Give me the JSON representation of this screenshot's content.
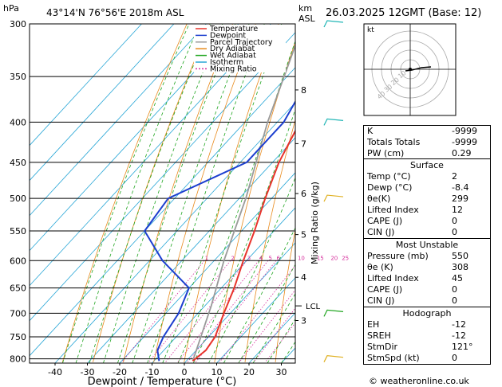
{
  "header": {
    "unit_left": "hPa",
    "location": "43°14'N  76°56'E  2018m  ASL",
    "unit_km": "km",
    "unit_asl": "ASL",
    "datetime": "26.03.2025  12GMT  (Base: 12)"
  },
  "chart_data": {
    "type": "skew-t",
    "xlabel": "Dewpoint / Temperature (°C)",
    "ylabel_right": "Mixing Ratio (g/kg)",
    "x_ticks": [
      -40,
      -30,
      -20,
      -10,
      0,
      10,
      20,
      30
    ],
    "pressure_levels": [
      300,
      350,
      400,
      450,
      500,
      550,
      600,
      650,
      700,
      750,
      800
    ],
    "km_ticks": [
      {
        "label": "8",
        "p": 364
      },
      {
        "label": "7",
        "p": 426
      },
      {
        "label": "6",
        "p": 493
      },
      {
        "label": "5",
        "p": 556
      },
      {
        "label": "4",
        "p": 630
      },
      {
        "label": "3",
        "p": 715
      }
    ],
    "lcl": {
      "label": "LCL",
      "p": 685
    },
    "mixing_ratio_labels": [
      "1",
      "2",
      "3",
      "4",
      "5",
      "6",
      "10",
      "15",
      "20",
      "25"
    ],
    "mixing_ratio_values": [
      1,
      2,
      3,
      4,
      5,
      6,
      10,
      15,
      20,
      25
    ],
    "mixing_ratio_label_p": 595,
    "temperature": [
      {
        "p": 805,
        "t": 2
      },
      {
        "p": 780,
        "t": 3
      },
      {
        "p": 750,
        "t": 2
      },
      {
        "p": 700,
        "t": -2
      },
      {
        "p": 650,
        "t": -6
      },
      {
        "p": 600,
        "t": -11
      },
      {
        "p": 550,
        "t": -16
      },
      {
        "p": 500,
        "t": -22
      },
      {
        "p": 450,
        "t": -28
      },
      {
        "p": 400,
        "t": -33
      },
      {
        "p": 350,
        "t": -41
      },
      {
        "p": 300,
        "t": -49
      }
    ],
    "dewpoint": [
      {
        "p": 805,
        "t": -8.4
      },
      {
        "p": 780,
        "t": -12
      },
      {
        "p": 750,
        "t": -14
      },
      {
        "p": 700,
        "t": -16
      },
      {
        "p": 650,
        "t": -20
      },
      {
        "p": 600,
        "t": -36
      },
      {
        "p": 550,
        "t": -50
      },
      {
        "p": 500,
        "t": -52
      },
      {
        "p": 450,
        "t": -38
      },
      {
        "p": 400,
        "t": -38
      },
      {
        "p": 350,
        "t": -43
      },
      {
        "p": 300,
        "t": -52
      }
    ],
    "parcel": [
      {
        "p": 805,
        "t": 2
      },
      {
        "p": 685,
        "t": -8
      },
      {
        "p": 600,
        "t": -17
      },
      {
        "p": 500,
        "t": -28
      },
      {
        "p": 400,
        "t": -43
      },
      {
        "p": 300,
        "t": -60
      }
    ],
    "legend": [
      {
        "label": "Temperature",
        "color": "#e8332b",
        "dash": ""
      },
      {
        "label": "Dewpoint",
        "color": "#1c3fcf",
        "dash": ""
      },
      {
        "label": "Parcel Trajectory",
        "color": "#9a9a9a",
        "dash": ""
      },
      {
        "label": "Dry Adiabat",
        "color": "#e88a1c",
        "dash": ""
      },
      {
        "label": "Wet Adiabat",
        "color": "#1fa51f",
        "dash": ""
      },
      {
        "label": "Isotherm",
        "color": "#27a6d6",
        "dash": ""
      },
      {
        "label": "Mixing Ratio",
        "color": "#d62d9c",
        "dash": "2,2"
      }
    ],
    "colors": {
      "temperature": "#e8332b",
      "dewpoint": "#1c3fcf",
      "parcel": "#9a9a9a",
      "dry_adiabat": "#e88a1c",
      "wet_adiabat": "#1fa51f",
      "isotherm": "#27a6d6",
      "mixing_ratio": "#d62d9c"
    },
    "wind_barbs_p": [
      300,
      400,
      500,
      700,
      800
    ],
    "wind_barb_colors": [
      "#1fb5b5",
      "#1fb5b5",
      "#e0b020",
      "#1fa51f",
      "#e0b020"
    ]
  },
  "hodograph": {
    "unit": "kt",
    "ring_labels": [
      "10",
      "20",
      "30",
      "40"
    ]
  },
  "indices": {
    "rows": [
      {
        "label": "K",
        "value": "-9999"
      },
      {
        "label": "Totals Totals",
        "value": "-9999"
      },
      {
        "label": "PW (cm)",
        "value": "0.29"
      }
    ]
  },
  "surface": {
    "title": "Surface",
    "rows": [
      {
        "label": "Temp (°C)",
        "value": "2"
      },
      {
        "label": "Dewp (°C)",
        "value": "-8.4"
      },
      {
        "label": "θe(K)",
        "value": "299"
      },
      {
        "label": "Lifted Index",
        "value": "12"
      },
      {
        "label": "CAPE (J)",
        "value": "0"
      },
      {
        "label": "CIN (J)",
        "value": "0"
      }
    ]
  },
  "unstable": {
    "title": "Most Unstable",
    "rows": [
      {
        "label": "Pressure (mb)",
        "value": "550"
      },
      {
        "label": "θe (K)",
        "value": "308"
      },
      {
        "label": "Lifted Index",
        "value": "45"
      },
      {
        "label": "CAPE (J)",
        "value": "0"
      },
      {
        "label": "CIN (J)",
        "value": "0"
      }
    ]
  },
  "hodo_table": {
    "title": "Hodograph",
    "rows": [
      {
        "label": "EH",
        "value": "-12"
      },
      {
        "label": "SREH",
        "value": "-12"
      },
      {
        "label": "StmDir",
        "value": "121°"
      },
      {
        "label": "StmSpd (kt)",
        "value": "0"
      }
    ]
  },
  "copyright": "© weatheronline.co.uk"
}
